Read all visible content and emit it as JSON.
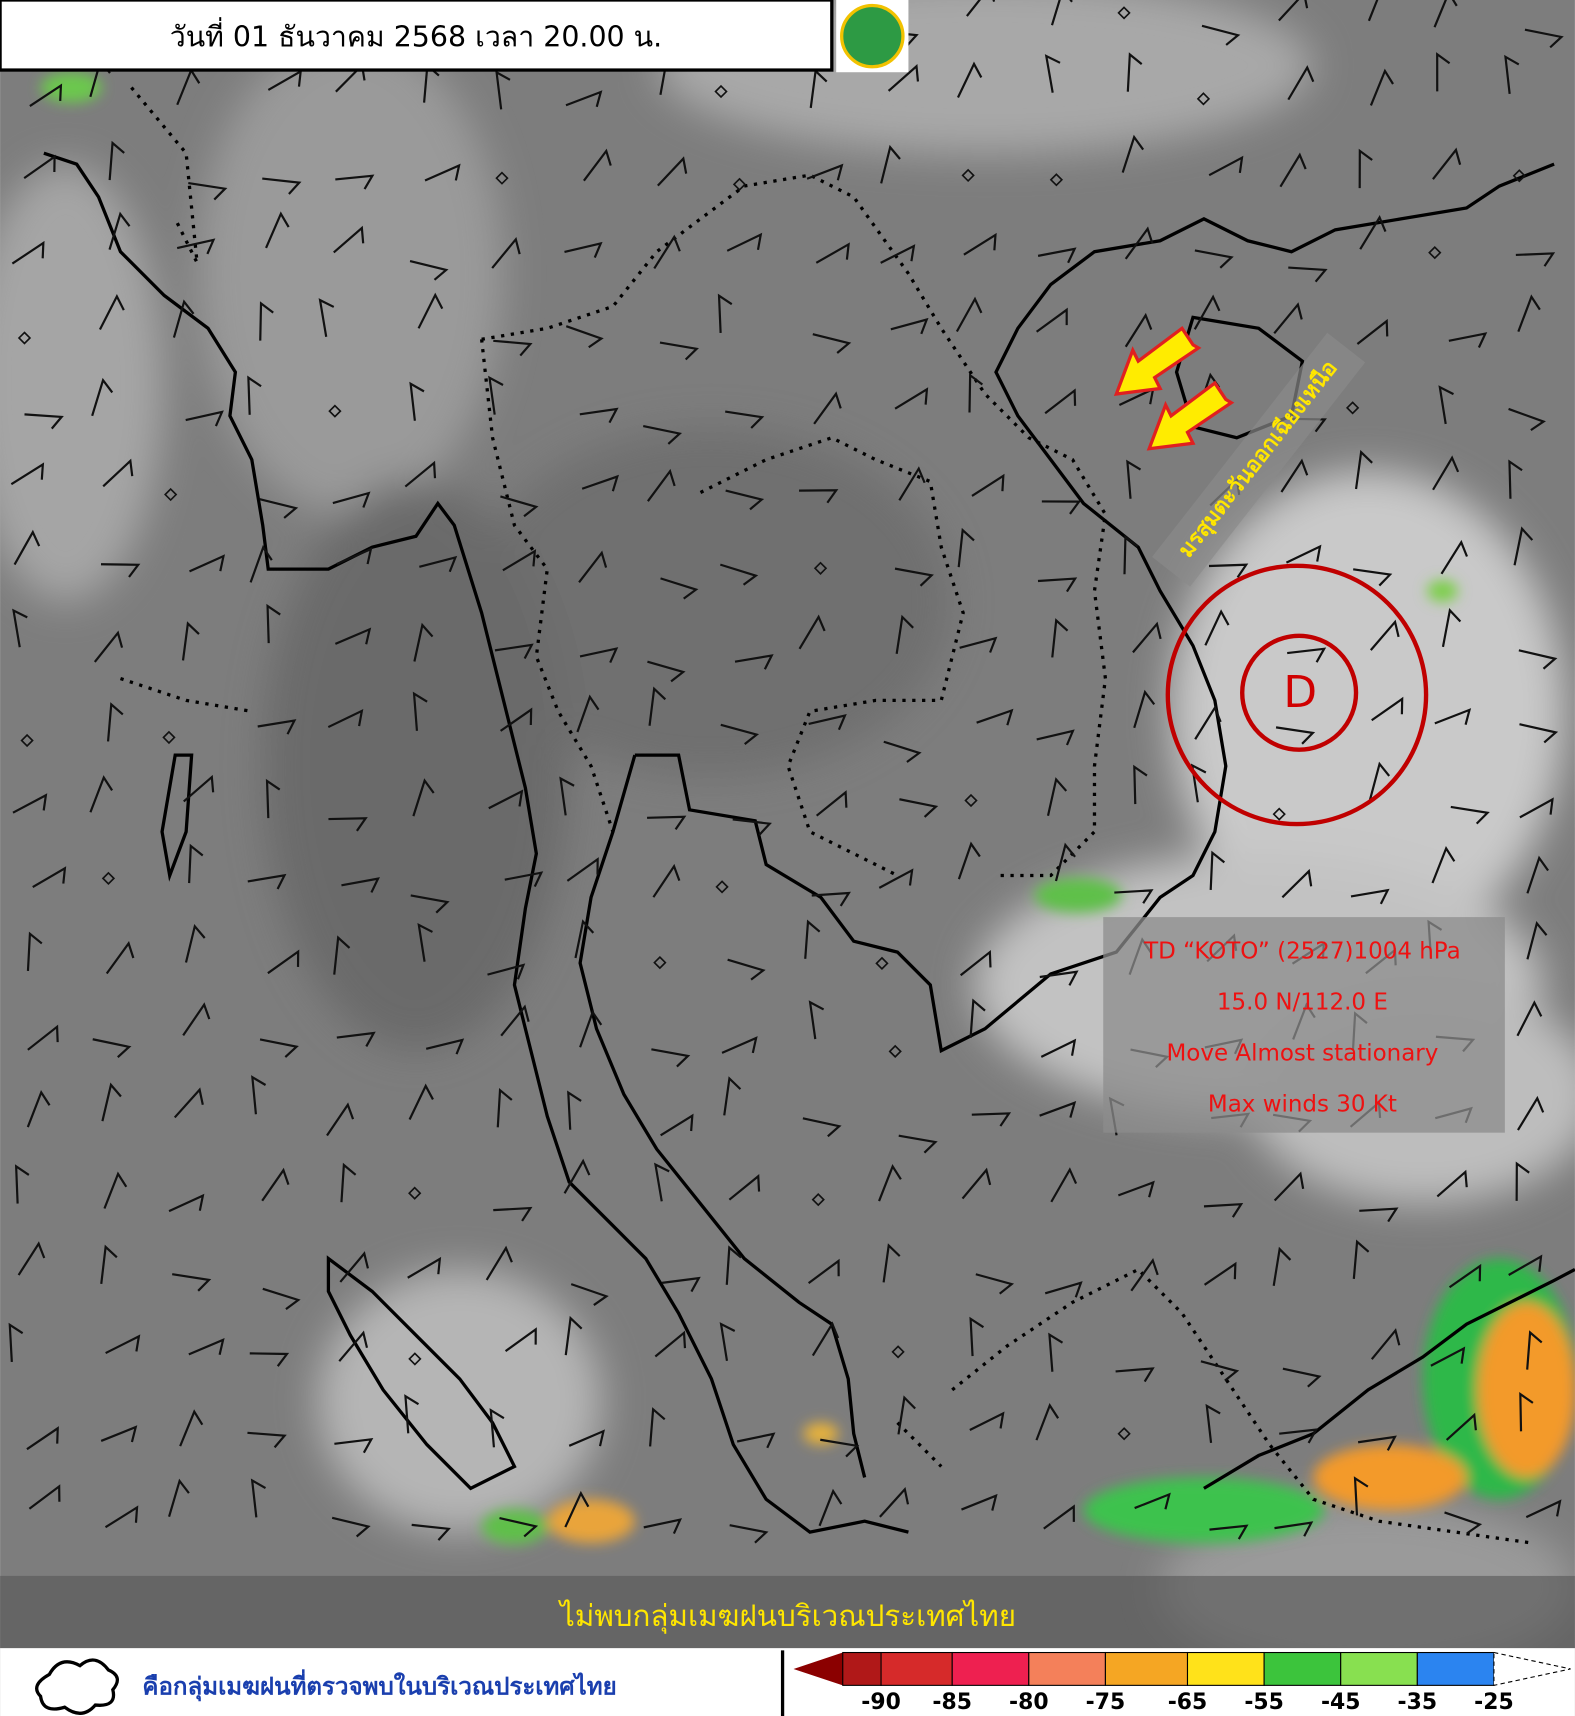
{
  "header": {
    "title": "วันที่ 01 ธันวาคม 2568 เวลา 20.00 น."
  },
  "annotations": {
    "monsoon": "มรสุมตะวันออกเฉียงเหนือ",
    "low_symbol": "D"
  },
  "storm_info": {
    "lines": [
      "TD “KOTO” (2527)1004 hPa",
      "15.0 N/112.0 E",
      "Move Almost stationary",
      "Max winds 30 Kt"
    ]
  },
  "banner": {
    "text": "ไม่พบกลุ่มเมฆฝนบริเวณประเทศไทย"
  },
  "legend": {
    "text": "คือกลุ่มเมฆฝนที่ตรวจพบในบริเวณประเทศไทย",
    "scale_ticks": [
      -90,
      -85,
      -80,
      -75,
      -65,
      -55,
      -45,
      -35,
      -25
    ]
  }
}
